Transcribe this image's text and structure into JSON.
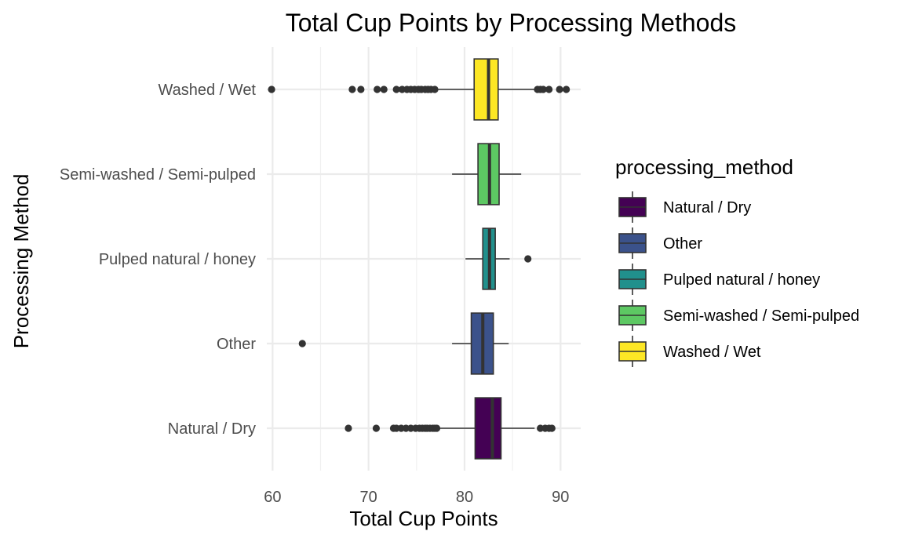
{
  "chart_data": {
    "type": "boxplot",
    "orientation": "horizontal",
    "title": "Total Cup Points by Processing Methods",
    "xlabel": "Total Cup Points",
    "ylabel": "Processing Method",
    "xlim": [
      59.4,
      92.1
    ],
    "xticks": [
      "60",
      "70",
      "80",
      "90"
    ],
    "grid": true,
    "legend": {
      "title": "processing_method",
      "position": "right",
      "entries": [
        "Natural / Dry",
        "Other",
        "Pulped natural / honey",
        "Semi-washed / Semi-pulped",
        "Washed / Wet"
      ]
    },
    "series": [
      {
        "name": "Natural / Dry",
        "color": "#440154",
        "whisker_low": 77.4,
        "q1": 81.1,
        "median": 82.9,
        "q3": 83.8,
        "whisker_high": 87.3,
        "outliers": [
          67.9,
          70.8,
          72.6,
          72.9,
          73.4,
          73.9,
          74.4,
          74.9,
          75.3,
          75.6,
          75.9,
          76.1,
          76.4,
          76.7,
          76.9,
          77.1,
          87.9,
          88.4,
          88.8,
          89.1
        ]
      },
      {
        "name": "Other",
        "color": "#3B528B",
        "whisker_low": 78.7,
        "q1": 80.7,
        "median": 81.9,
        "q3": 83.0,
        "whisker_high": 84.6,
        "outliers": [
          63.1
        ]
      },
      {
        "name": "Pulped natural / honey",
        "color": "#21908C",
        "whisker_low": 80.1,
        "q1": 81.9,
        "median": 82.6,
        "q3": 83.2,
        "whisker_high": 84.7,
        "outliers": [
          86.6
        ]
      },
      {
        "name": "Semi-washed / Semi-pulped",
        "color": "#5DC863",
        "whisker_low": 78.7,
        "q1": 81.4,
        "median": 82.6,
        "q3": 83.6,
        "whisker_high": 85.9,
        "outliers": []
      },
      {
        "name": "Washed / Wet",
        "color": "#FDE725",
        "whisker_low": 77.2,
        "q1": 81.0,
        "median": 82.5,
        "q3": 83.5,
        "whisker_high": 87.3,
        "outliers": [
          59.9,
          68.3,
          69.2,
          70.9,
          71.6,
          72.9,
          73.5,
          74.0,
          74.4,
          74.8,
          75.2,
          75.5,
          75.9,
          76.2,
          76.5,
          76.9,
          87.6,
          87.9,
          88.2,
          88.8,
          89.9,
          90.6
        ]
      }
    ]
  }
}
